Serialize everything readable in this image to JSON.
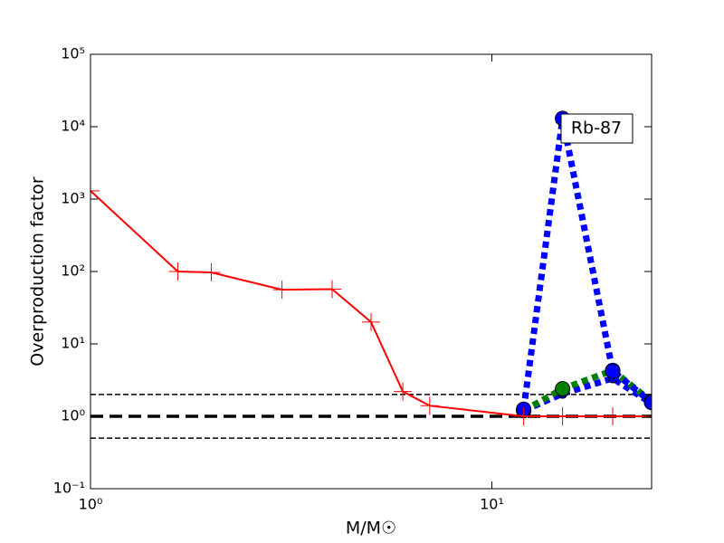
{
  "chart_data": {
    "type": "line",
    "xlabel": "M/M☉",
    "ylabel": "Overproduction factor",
    "xlog": true,
    "ylog": true,
    "xlim": [
      1,
      25
    ],
    "ylim": [
      0.1,
      100000
    ],
    "xticks": [
      {
        "value": 1,
        "label": "10⁰"
      },
      {
        "value": 10,
        "label": "10¹"
      }
    ],
    "yticks": [
      {
        "value": 0.1,
        "label": "10⁻¹"
      },
      {
        "value": 1,
        "label": "10⁰"
      },
      {
        "value": 10,
        "label": "10¹"
      },
      {
        "value": 100,
        "label": "10²"
      },
      {
        "value": 1000,
        "label": "10³"
      },
      {
        "value": 10000,
        "label": "10⁴"
      },
      {
        "value": 100000,
        "label": "10⁵"
      }
    ],
    "reference_lines": [
      {
        "value": 2,
        "width": 1.5
      },
      {
        "value": 1,
        "width": 3.5
      },
      {
        "value": 0.5,
        "width": 1.5
      }
    ],
    "annotation": "Rb-87",
    "series": [
      {
        "color": "#0000ff",
        "marker": "o",
        "marker_size": 5,
        "line": "dotted",
        "x": [
          12,
          15,
          20,
          25
        ],
        "values": [
          1.2,
          2.05,
          3.35,
          1.5
        ]
      },
      {
        "color": "#007f00",
        "marker": "o",
        "marker_size": 8,
        "line": "dotted",
        "x": [
          12,
          15,
          20,
          25
        ],
        "values": [
          1.2,
          2.4,
          4.3,
          1.6
        ]
      },
      {
        "color": "#0000ff",
        "marker": "o",
        "marker_size": 8,
        "line": "dotted",
        "x": [
          12,
          15,
          20,
          25
        ],
        "values": [
          1.25,
          13000,
          4.2,
          1.55
        ]
      },
      {
        "color": "#ff0000",
        "marker": "+",
        "marker_size": 10,
        "line": "solid",
        "x": [
          1,
          1.65,
          2,
          3,
          4,
          5,
          6,
          7,
          12,
          15,
          20,
          25
        ],
        "values": [
          1300,
          100,
          97,
          56,
          57,
          20,
          2.2,
          1.4,
          1,
          1,
          1,
          1
        ]
      }
    ]
  }
}
